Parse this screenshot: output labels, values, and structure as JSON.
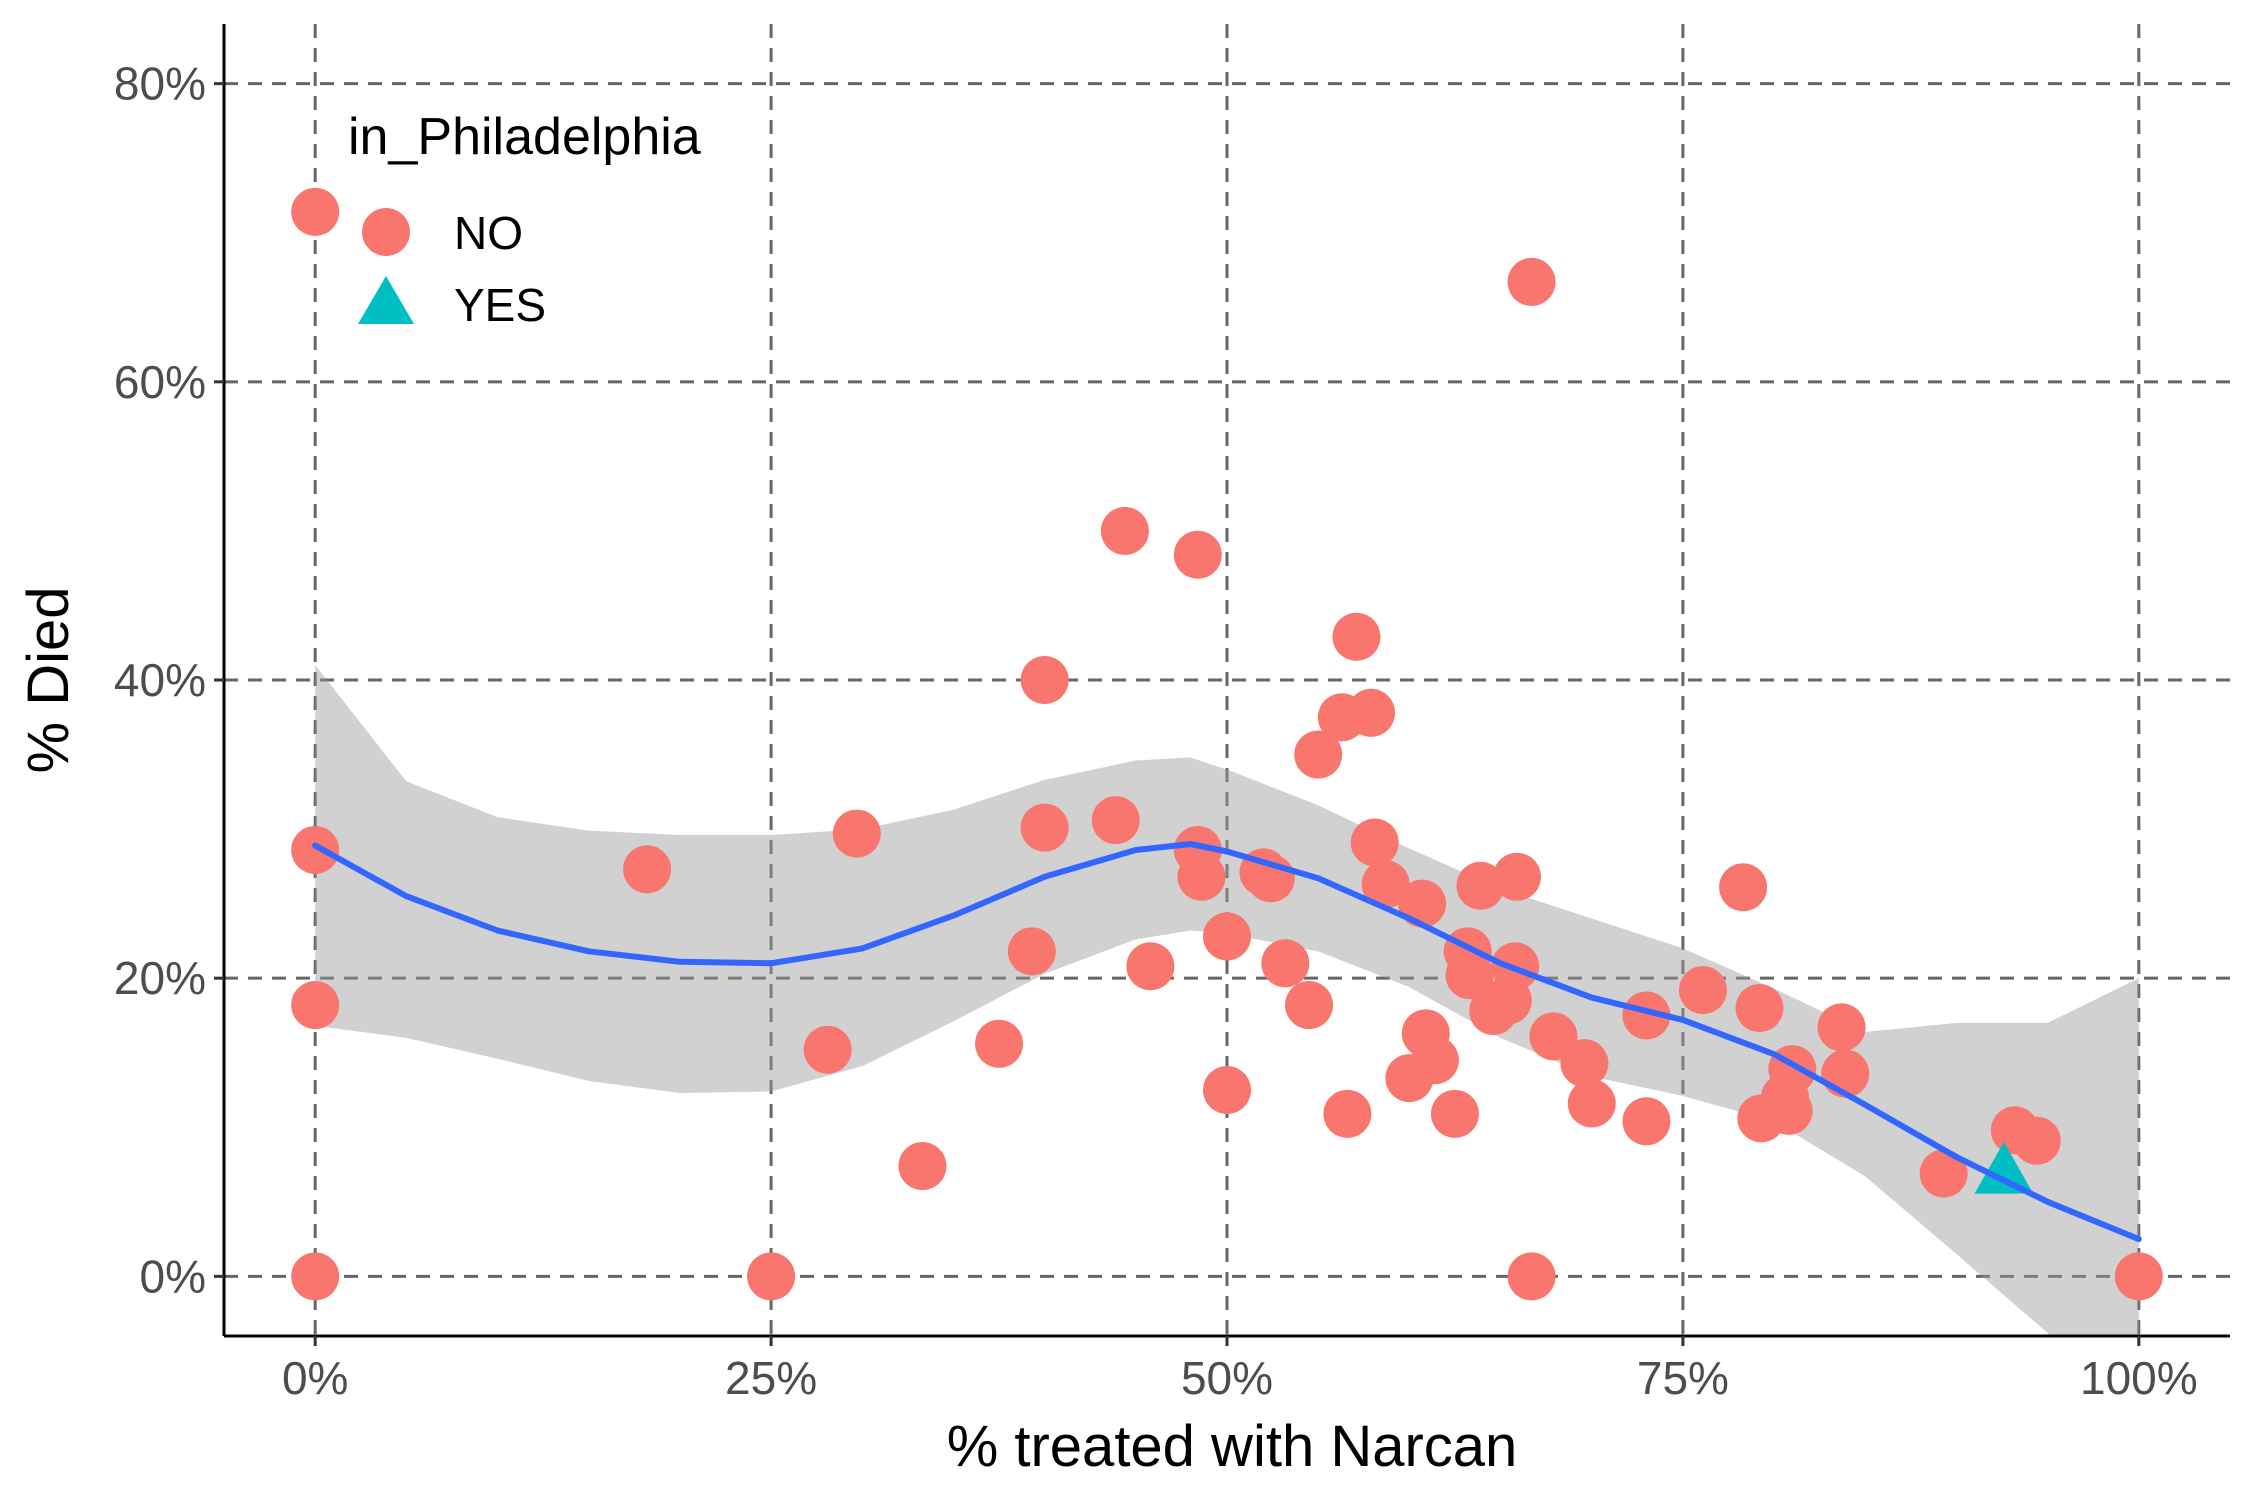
{
  "chart_data": {
    "type": "scatter",
    "xlabel": "% treated with Narcan",
    "ylabel": "% Died",
    "xlim": [
      -5,
      105
    ],
    "ylim": [
      -4,
      84
    ],
    "x_ticks": [
      0,
      25,
      50,
      75,
      100
    ],
    "x_tick_labels": [
      "0%",
      "25%",
      "50%",
      "75%",
      "100%"
    ],
    "y_ticks": [
      0,
      20,
      40,
      60,
      80
    ],
    "y_tick_labels": [
      "0%",
      "20%",
      "40%",
      "60%",
      "80%"
    ],
    "grid": "major, dashed",
    "legend": {
      "title": "in_Philadelphia",
      "position": "top-left",
      "entries": [
        {
          "label": "NO",
          "shape": "circle",
          "color": "#F8766D"
        },
        {
          "label": "YES",
          "shape": "triangle",
          "color": "#00BFC4"
        }
      ]
    },
    "series": [
      {
        "name": "NO",
        "shape": "circle",
        "color": "#F8766D",
        "points": [
          [
            0,
            71.4
          ],
          [
            0,
            28.6
          ],
          [
            0,
            18.2
          ],
          [
            0,
            0
          ],
          [
            18.2,
            27.3
          ],
          [
            25,
            0
          ],
          [
            28.1,
            15.2
          ],
          [
            29.7,
            29.7
          ],
          [
            33.3,
            7.4
          ],
          [
            37.5,
            15.6
          ],
          [
            39.3,
            21.8
          ],
          [
            40,
            30.1
          ],
          [
            40,
            40
          ],
          [
            43.9,
            30.6
          ],
          [
            44.4,
            50
          ],
          [
            45.8,
            20.8
          ],
          [
            48.4,
            48.4
          ],
          [
            48.4,
            28.6
          ],
          [
            48.6,
            26.8
          ],
          [
            50,
            22.8
          ],
          [
            50,
            12.5
          ],
          [
            52,
            27.1
          ],
          [
            52.4,
            26.7
          ],
          [
            53.2,
            21.0
          ],
          [
            54.5,
            18.2
          ],
          [
            55,
            35
          ],
          [
            56.3,
            37.5
          ],
          [
            56.6,
            10.9
          ],
          [
            57.1,
            42.9
          ],
          [
            57.9,
            37.8
          ],
          [
            58.1,
            29.1
          ],
          [
            58.7,
            26.3
          ],
          [
            60,
            13.3
          ],
          [
            60.7,
            25
          ],
          [
            60.9,
            16.3
          ],
          [
            61.4,
            14.5
          ],
          [
            62.5,
            10.9
          ],
          [
            63.2,
            21.8
          ],
          [
            63.3,
            20.2
          ],
          [
            63.9,
            26.2
          ],
          [
            64.6,
            17.8
          ],
          [
            65.4,
            18.5
          ],
          [
            65.8,
            20.8
          ],
          [
            65.9,
            26.8
          ],
          [
            66.7,
            66.7
          ],
          [
            66.7,
            0
          ],
          [
            67.9,
            16.1
          ],
          [
            69.6,
            14.3
          ],
          [
            70,
            11.6
          ],
          [
            73,
            10.4
          ],
          [
            73,
            17.5
          ],
          [
            76.1,
            19.2
          ],
          [
            78.3,
            26.1
          ],
          [
            79.2,
            18.0
          ],
          [
            79.3,
            10.6
          ],
          [
            80.6,
            12.0
          ],
          [
            80.8,
            11.1
          ],
          [
            81,
            13.9
          ],
          [
            83.7,
            16.7
          ],
          [
            83.9,
            13.6
          ],
          [
            89.3,
            6.9
          ],
          [
            93.2,
            9.8
          ],
          [
            94.4,
            9.1
          ],
          [
            100,
            0
          ]
        ]
      },
      {
        "name": "YES",
        "shape": "triangle",
        "color": "#00BFC4",
        "points": [
          [
            92.6,
            7.0
          ]
        ]
      }
    ],
    "smooth": {
      "line_color": "#3366FF",
      "band_color": "#999999",
      "curve": [
        [
          0,
          28.9
        ],
        [
          5,
          25.5
        ],
        [
          10,
          23.2
        ],
        [
          15,
          21.8
        ],
        [
          20,
          21.1
        ],
        [
          25,
          21.0
        ],
        [
          30,
          22.0
        ],
        [
          35,
          24.2
        ],
        [
          40,
          26.8
        ],
        [
          45,
          28.6
        ],
        [
          48,
          29.0
        ],
        [
          50,
          28.5
        ],
        [
          55,
          26.7
        ],
        [
          60,
          24.0
        ],
        [
          65,
          21.0
        ],
        [
          70,
          18.7
        ],
        [
          75,
          17.2
        ],
        [
          80,
          14.9
        ],
        [
          85,
          11.5
        ],
        [
          90,
          8.0
        ],
        [
          95,
          5.0
        ],
        [
          100,
          2.5
        ]
      ],
      "band_upper": [
        [
          0,
          41.0
        ],
        [
          5,
          33.2
        ],
        [
          10,
          30.8
        ],
        [
          15,
          29.9
        ],
        [
          20,
          29.6
        ],
        [
          25,
          29.6
        ],
        [
          30,
          30.0
        ],
        [
          35,
          31.3
        ],
        [
          40,
          33.3
        ],
        [
          45,
          34.6
        ],
        [
          48,
          34.8
        ],
        [
          50,
          34.0
        ],
        [
          55,
          31.6
        ],
        [
          60,
          28.7
        ],
        [
          65,
          26.0
        ],
        [
          70,
          24.0
        ],
        [
          75,
          22.0
        ],
        [
          80,
          19.3
        ],
        [
          85,
          16.4
        ],
        [
          90,
          17.0
        ],
        [
          95,
          17.0
        ],
        [
          100,
          20.0
        ]
      ],
      "band_lower": [
        [
          0,
          16.8
        ],
        [
          5,
          16.0
        ],
        [
          10,
          14.6
        ],
        [
          15,
          13.1
        ],
        [
          20,
          12.3
        ],
        [
          25,
          12.4
        ],
        [
          30,
          14.1
        ],
        [
          35,
          17.1
        ],
        [
          40,
          20.3
        ],
        [
          45,
          22.6
        ],
        [
          48,
          23.2
        ],
        [
          50,
          23.0
        ],
        [
          55,
          21.8
        ],
        [
          60,
          19.4
        ],
        [
          65,
          16.0
        ],
        [
          70,
          13.4
        ],
        [
          75,
          12.1
        ],
        [
          80,
          10.4
        ],
        [
          85,
          6.7
        ],
        [
          90,
          1.5
        ],
        [
          95,
          -3.8
        ],
        [
          100,
          -15
        ]
      ]
    }
  }
}
